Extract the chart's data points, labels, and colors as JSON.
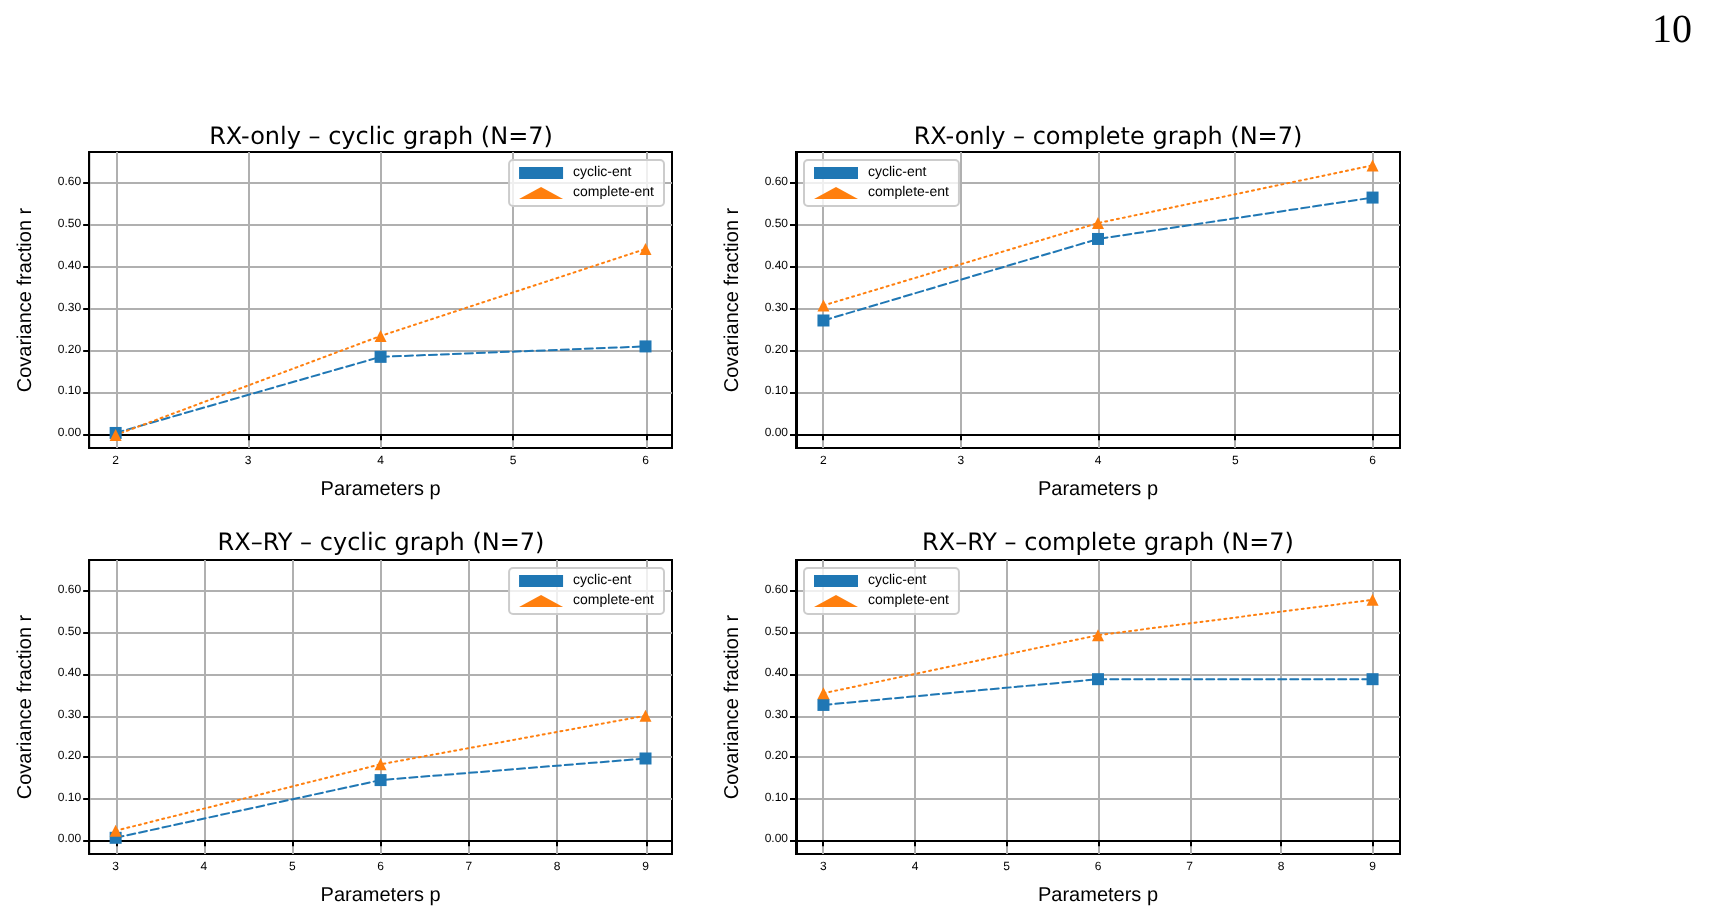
{
  "chart_data": [
    {
      "type": "line",
      "title": "RX-only – cyclic graph (N=7)",
      "xlabel": "Parameters p",
      "ylabel": "Covariance fraction r",
      "annotations": [
        "10"
      ],
      "x": [
        2,
        4,
        6
      ],
      "series": [
        {
          "name": "cyclic-ent",
          "color": "#1f77b4",
          "marker": "square",
          "line_style": "dashed",
          "values": [
            0.003,
            0.185,
            0.21
          ]
        },
        {
          "name": "complete-ent",
          "color": "#ff7f0e",
          "marker": "triangle",
          "line_style": "dotted",
          "values": [
            -0.002,
            0.235,
            0.443
          ]
        }
      ],
      "xlim": [
        1.8,
        6.2
      ],
      "xticks": [
        2,
        3,
        4,
        5,
        6
      ],
      "ylim": [
        -0.033,
        0.675
      ],
      "yticks": [
        {
          "value": 0,
          "label": "0.00"
        },
        {
          "value": 0.1,
          "label": "0.10"
        },
        {
          "value": 0.2,
          "label": "0.20"
        },
        {
          "value": 0.3,
          "label": "0.30"
        },
        {
          "value": 0.4,
          "label": "0.40"
        },
        {
          "value": 0.5,
          "label": "0.50"
        },
        {
          "value": 0.6,
          "label": "0.60"
        }
      ],
      "grid": true,
      "legend": "top right"
    },
    {
      "type": "line",
      "title": "RX-only – complete graph (N=7)",
      "xlabel": "Parameters p",
      "ylabel": "Covariance fraction r",
      "x": [
        2,
        4,
        6
      ],
      "series": [
        {
          "name": "cyclic-ent",
          "color": "#1f77b4",
          "marker": "square",
          "line_style": "dashed",
          "values": [
            0.272,
            0.467,
            0.566
          ]
        },
        {
          "name": "complete-ent",
          "color": "#ff7f0e",
          "marker": "triangle",
          "line_style": "dotted",
          "values": [
            0.308,
            0.505,
            0.643
          ]
        }
      ],
      "xlim": [
        1.8,
        6.2
      ],
      "xticks": [
        2,
        3,
        4,
        5,
        6
      ],
      "ylim": [
        -0.033,
        0.675
      ],
      "yticks": [
        {
          "value": 0,
          "label": "0.00"
        },
        {
          "value": 0.1,
          "label": "0.10"
        },
        {
          "value": 0.2,
          "label": "0.20"
        },
        {
          "value": 0.3,
          "label": "0.30"
        },
        {
          "value": 0.4,
          "label": "0.40"
        },
        {
          "value": 0.5,
          "label": "0.50"
        },
        {
          "value": 0.6,
          "label": "0.60"
        }
      ],
      "grid": true,
      "legend": "top left"
    },
    {
      "type": "line",
      "title": "RX–RY – cyclic graph (N=7)",
      "xlabel": "Parameters p",
      "ylabel": "Covariance fraction r",
      "x": [
        3,
        6,
        9
      ],
      "series": [
        {
          "name": "cyclic-ent",
          "color": "#1f77b4",
          "marker": "square",
          "line_style": "dashed",
          "values": [
            0.006,
            0.145,
            0.197
          ]
        },
        {
          "name": "complete-ent",
          "color": "#ff7f0e",
          "marker": "triangle",
          "line_style": "dotted",
          "values": [
            0.023,
            0.183,
            0.3
          ]
        }
      ],
      "xlim": [
        2.7,
        9.3
      ],
      "xticks": [
        3,
        4,
        5,
        6,
        7,
        8,
        9
      ],
      "ylim": [
        -0.033,
        0.675
      ],
      "yticks": [
        {
          "value": 0,
          "label": "0.00"
        },
        {
          "value": 0.1,
          "label": "0.10"
        },
        {
          "value": 0.2,
          "label": "0.20"
        },
        {
          "value": 0.3,
          "label": "0.30"
        },
        {
          "value": 0.4,
          "label": "0.40"
        },
        {
          "value": 0.5,
          "label": "0.50"
        },
        {
          "value": 0.6,
          "label": "0.60"
        }
      ],
      "grid": true,
      "legend": "top right"
    },
    {
      "type": "line",
      "title": "RX–RY – complete graph (N=7)",
      "xlabel": "Parameters p",
      "ylabel": "Covariance fraction r",
      "x": [
        3,
        6,
        9
      ],
      "series": [
        {
          "name": "cyclic-ent",
          "color": "#1f77b4",
          "marker": "square",
          "line_style": "dashed",
          "values": [
            0.326,
            0.388,
            0.388
          ]
        },
        {
          "name": "complete-ent",
          "color": "#ff7f0e",
          "marker": "triangle",
          "line_style": "dotted",
          "values": [
            0.354,
            0.494,
            0.579
          ]
        }
      ],
      "xlim": [
        2.7,
        9.3
      ],
      "xticks": [
        3,
        4,
        5,
        6,
        7,
        8,
        9
      ],
      "ylim": [
        -0.033,
        0.675
      ],
      "yticks": [
        {
          "value": 0,
          "label": "0.00"
        },
        {
          "value": 0.1,
          "label": "0.10"
        },
        {
          "value": 0.2,
          "label": "0.20"
        },
        {
          "value": 0.3,
          "label": "0.30"
        },
        {
          "value": 0.4,
          "label": "0.40"
        },
        {
          "value": 0.5,
          "label": "0.50"
        },
        {
          "value": 0.6,
          "label": "0.60"
        }
      ],
      "grid": true,
      "legend": "top left"
    }
  ]
}
